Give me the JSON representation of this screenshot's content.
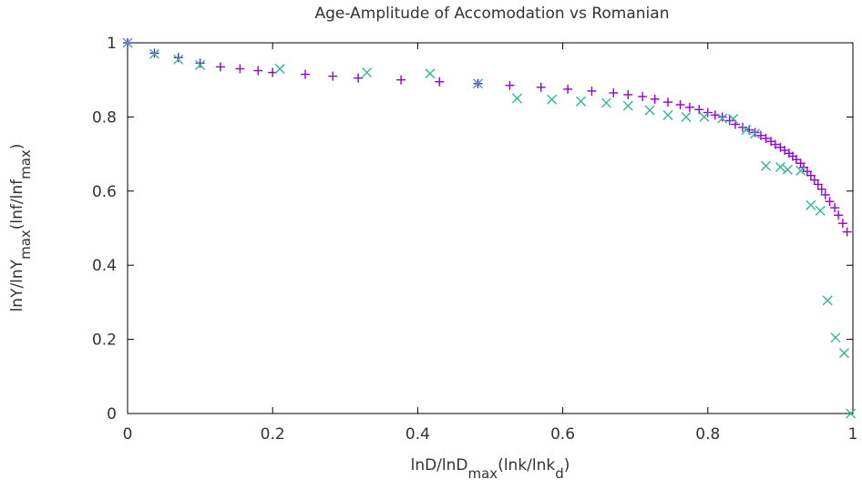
{
  "chart_data": {
    "type": "scatter",
    "title": "Age-Amplitude of Accomodation vs Romanian",
    "xlabel": {
      "parts": [
        {
          "text": "lnD/lnD",
          "shift": "normal"
        },
        {
          "text": "max",
          "shift": "sub"
        },
        {
          "text": "(lnk/lnk",
          "shift": "normal"
        },
        {
          "text": "d",
          "shift": "sub"
        },
        {
          "text": ")",
          "shift": "normal"
        }
      ]
    },
    "ylabel": {
      "parts": [
        {
          "text": "lnY/lnY",
          "shift": "normal"
        },
        {
          "text": "max",
          "shift": "sub"
        },
        {
          "text": "(lnf/lnf",
          "shift": "normal"
        },
        {
          "text": "max",
          "shift": "sub"
        },
        {
          "text": ")",
          "shift": "normal"
        }
      ]
    },
    "xlim": [
      0,
      1
    ],
    "ylim": [
      0,
      1
    ],
    "xticks": [
      0,
      0.2,
      0.4,
      0.6,
      0.8,
      1
    ],
    "yticks": [
      0,
      0.2,
      0.4,
      0.6,
      0.8,
      1
    ],
    "xtick_labels": [
      "0",
      "0.2",
      "0.4",
      "0.6",
      "0.8",
      "1"
    ],
    "ytick_labels": [
      "0",
      "0.2",
      "0.4",
      "0.6",
      "0.8",
      "1"
    ],
    "grid": false,
    "legend": "none",
    "series": [
      {
        "marker": "plus",
        "color": "#9400d3",
        "points": [
          [
            0,
            1
          ],
          [
            0.037,
            0.972
          ],
          [
            0.07,
            0.96
          ],
          [
            0.1,
            0.945
          ],
          [
            0.128,
            0.935
          ],
          [
            0.155,
            0.93
          ],
          [
            0.18,
            0.925
          ],
          [
            0.2,
            0.92
          ],
          [
            0.245,
            0.915
          ],
          [
            0.283,
            0.91
          ],
          [
            0.318,
            0.905
          ],
          [
            0.377,
            0.9
          ],
          [
            0.43,
            0.895
          ],
          [
            0.483,
            0.89
          ],
          [
            0.527,
            0.885
          ],
          [
            0.57,
            0.88
          ],
          [
            0.607,
            0.875
          ],
          [
            0.64,
            0.87
          ],
          [
            0.67,
            0.865
          ],
          [
            0.69,
            0.86
          ],
          [
            0.71,
            0.855
          ],
          [
            0.727,
            0.848
          ],
          [
            0.745,
            0.84
          ],
          [
            0.762,
            0.833
          ],
          [
            0.775,
            0.826
          ],
          [
            0.788,
            0.82
          ],
          [
            0.8,
            0.812
          ],
          [
            0.81,
            0.805
          ],
          [
            0.82,
            0.8
          ],
          [
            0.83,
            0.79
          ],
          [
            0.838,
            0.78
          ],
          [
            0.848,
            0.772
          ],
          [
            0.857,
            0.765
          ],
          [
            0.865,
            0.758
          ],
          [
            0.873,
            0.75
          ],
          [
            0.88,
            0.742
          ],
          [
            0.887,
            0.734
          ],
          [
            0.893,
            0.726
          ],
          [
            0.9,
            0.718
          ],
          [
            0.906,
            0.71
          ],
          [
            0.912,
            0.702
          ],
          [
            0.917,
            0.694
          ],
          [
            0.922,
            0.685
          ],
          [
            0.928,
            0.675
          ],
          [
            0.932,
            0.664
          ],
          [
            0.937,
            0.653
          ],
          [
            0.942,
            0.642
          ],
          [
            0.947,
            0.63
          ],
          [
            0.952,
            0.618
          ],
          [
            0.957,
            0.605
          ],
          [
            0.962,
            0.59
          ],
          [
            0.968,
            0.572
          ],
          [
            0.975,
            0.555
          ],
          [
            0.98,
            0.535
          ],
          [
            0.986,
            0.513
          ],
          [
            0.992,
            0.49
          ]
        ]
      },
      {
        "marker": "cross",
        "color": "#2bb895",
        "points": [
          [
            0,
            1
          ],
          [
            0.037,
            0.97
          ],
          [
            0.07,
            0.955
          ],
          [
            0.1,
            0.94
          ],
          [
            0.21,
            0.93
          ],
          [
            0.33,
            0.92
          ],
          [
            0.417,
            0.917
          ],
          [
            0.483,
            0.89
          ],
          [
            0.537,
            0.85
          ],
          [
            0.585,
            0.847
          ],
          [
            0.625,
            0.842
          ],
          [
            0.66,
            0.838
          ],
          [
            0.69,
            0.83
          ],
          [
            0.72,
            0.818
          ],
          [
            0.745,
            0.805
          ],
          [
            0.77,
            0.8
          ],
          [
            0.795,
            0.8
          ],
          [
            0.82,
            0.796
          ],
          [
            0.835,
            0.795
          ],
          [
            0.853,
            0.765
          ],
          [
            0.865,
            0.755
          ],
          [
            0.88,
            0.668
          ],
          [
            0.9,
            0.665
          ],
          [
            0.91,
            0.658
          ],
          [
            0.928,
            0.655
          ],
          [
            0.942,
            0.562
          ],
          [
            0.955,
            0.547
          ],
          [
            0.965,
            0.305
          ],
          [
            0.976,
            0.205
          ],
          [
            0.988,
            0.163
          ],
          [
            0.997,
            0
          ]
        ]
      }
    ]
  }
}
